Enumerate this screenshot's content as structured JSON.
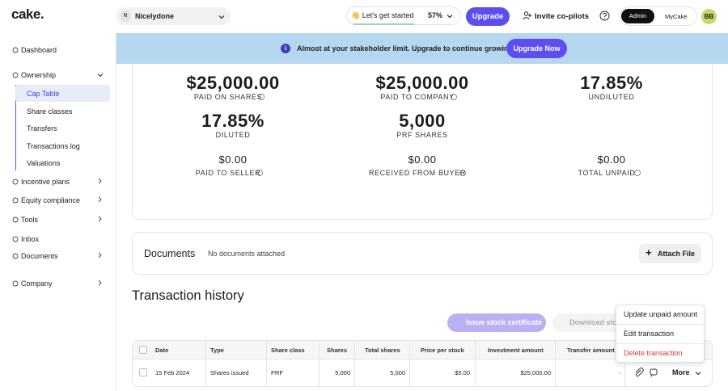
{
  "brand": "cake.",
  "topbar": {
    "company_initial": "N",
    "company": "Nicelydone",
    "get_started": "👋 Let's get started",
    "progress": "57%",
    "upgrade": "Upgrade",
    "invite": "Invite co-pilots",
    "role_admin": "Admin",
    "role_mycake": "MyCake",
    "avatar": "BB"
  },
  "sidebar": {
    "items": [
      "Dashboard",
      "Ownership",
      "Incentive plans",
      "Equity compliance",
      "Tools",
      "Inbox",
      "Documents",
      "Company"
    ],
    "ownership_items": [
      "Cap Table",
      "Share classes",
      "Transfers",
      "Transactions log",
      "Valuations"
    ]
  },
  "banner": {
    "text": "Almost at your stakeholder limit. Upgrade to continue growing.",
    "button": "Upgrade Now"
  },
  "stats": [
    {
      "value": "$25,000.00",
      "label": "PAID ON SHARES"
    },
    {
      "value": "$25,000.00",
      "label": "PAID TO COMPANY"
    },
    {
      "value": "17.85%",
      "label": "UNDILUTED"
    },
    {
      "value": "17.85%",
      "label": "DILUTED"
    },
    {
      "value": "5,000",
      "label": "PRF SHARES"
    },
    {
      "value": "$0.00",
      "label": "PAID TO SELLER"
    },
    {
      "value": "$0.00",
      "label": "RECEIVED FROM BUYER"
    },
    {
      "value": "$0.00",
      "label": "TOTAL UNPAID"
    }
  ],
  "documents": {
    "title": "Documents",
    "empty": "No documents attached",
    "button": "Attach File"
  },
  "transactions": {
    "title": "Transaction history",
    "issue": "Issue stock certificate",
    "download": "Download stoc",
    "columns": [
      "Date",
      "Type",
      "Share class",
      "Shares",
      "Total shares",
      "Price per stock",
      "Investment amount",
      "Transfer amount"
    ],
    "rows": [
      [
        "15 Feb 2024",
        "Shares issued",
        "PRF",
        "5,000",
        "5,000",
        "$5.00",
        "$25,000.00",
        "-"
      ]
    ],
    "more": "More"
  },
  "menu": [
    "Update unpaid amount",
    "Edit transaction",
    "Delete transaction"
  ]
}
